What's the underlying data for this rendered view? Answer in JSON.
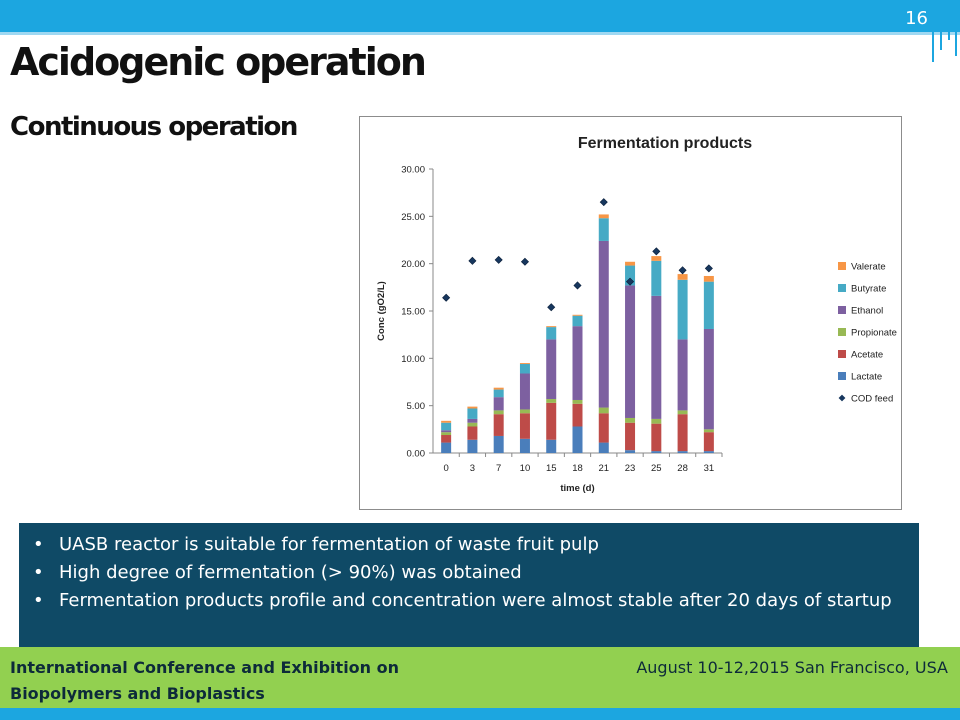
{
  "slide": {
    "page_number": "16",
    "title": "Acidogenic operation",
    "subtitle": "Continuous operation"
  },
  "bullets": [
    "UASB reactor is suitable for fermentation of waste fruit pulp",
    " High degree of fermentation (> 90%) was obtained",
    "Fermentation products profile and concentration were almost stable after 20 days of startup"
  ],
  "footer": {
    "conference_line1": "International Conference and Exhibition on",
    "conference_line2": "Biopolymers and Bioplastics",
    "date_location": "August 10-12,2015 San Francisco, USA"
  },
  "colors": {
    "top_bar": "#1ca6e0",
    "bullet_box": "#0f4a66",
    "footer": "#92d050"
  },
  "chart_data": {
    "type": "bar",
    "stacked": true,
    "title": "Fermentation products",
    "xlabel": "time (d)",
    "ylabel": "Conc (gO2/L)",
    "ylim": [
      0,
      30
    ],
    "yticks": [
      "0.00",
      "5.00",
      "10.00",
      "15.00",
      "20.00",
      "25.00",
      "30.00"
    ],
    "categories": [
      "0",
      "3",
      "7",
      "10",
      "15",
      "18",
      "21",
      "23",
      "25",
      "28",
      "31"
    ],
    "series": [
      {
        "name": "Lactate",
        "color": "#4a7ebb",
        "values": [
          1.1,
          1.4,
          1.8,
          1.5,
          1.4,
          2.8,
          1.1,
          0.3,
          0.2,
          0.2,
          0.2
        ]
      },
      {
        "name": "Acetate",
        "color": "#be4b48",
        "values": [
          0.8,
          1.4,
          2.3,
          2.7,
          3.9,
          2.4,
          3.1,
          2.9,
          2.9,
          3.9,
          2.0
        ]
      },
      {
        "name": "Propionate",
        "color": "#98b954",
        "values": [
          0.3,
          0.4,
          0.4,
          0.4,
          0.4,
          0.4,
          0.6,
          0.5,
          0.5,
          0.4,
          0.3
        ]
      },
      {
        "name": "Ethanol",
        "color": "#7d60a0",
        "values": [
          0.2,
          0.4,
          1.4,
          3.8,
          6.3,
          7.8,
          17.6,
          14.0,
          13.0,
          7.5,
          10.6
        ]
      },
      {
        "name": "Butyrate",
        "color": "#46aac5",
        "values": [
          0.8,
          1.1,
          0.8,
          1.0,
          1.3,
          1.1,
          2.4,
          2.1,
          3.7,
          6.3,
          5.0
        ]
      },
      {
        "name": "Valerate",
        "color": "#f79646",
        "values": [
          0.2,
          0.2,
          0.2,
          0.1,
          0.1,
          0.1,
          0.4,
          0.4,
          0.5,
          0.6,
          0.6
        ]
      }
    ],
    "cod_feed": {
      "name": "COD feed",
      "color": "#17375e",
      "values": [
        16.4,
        20.3,
        20.4,
        20.2,
        15.4,
        17.7,
        26.5,
        18.1,
        21.3,
        19.3,
        19.5
      ]
    },
    "legend_order": [
      "Valerate",
      "Butyrate",
      "Ethanol",
      "Propionate",
      "Acetate",
      "Lactate",
      "COD feed"
    ],
    "legend_position": "right",
    "grid": false
  }
}
